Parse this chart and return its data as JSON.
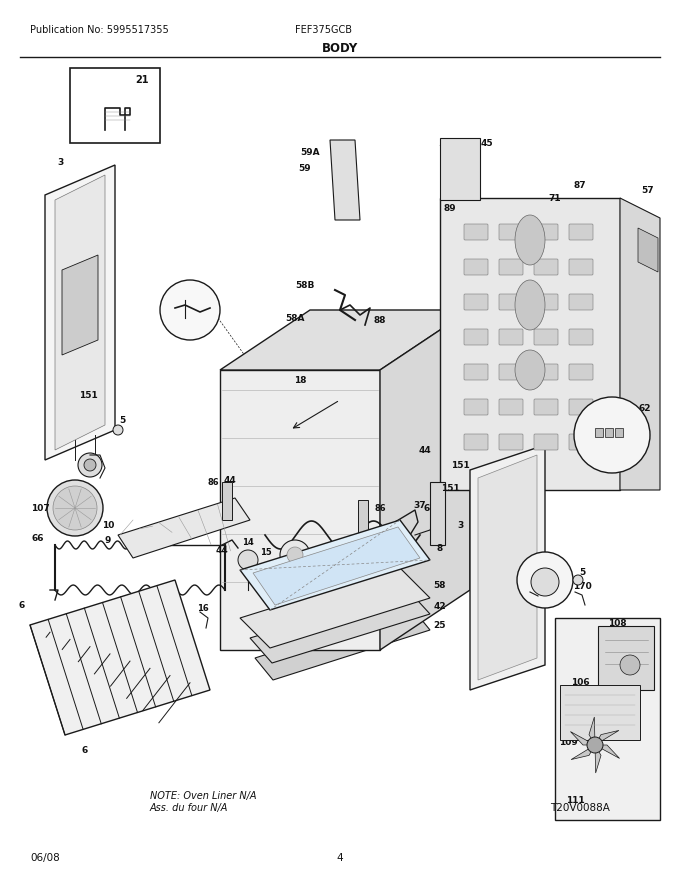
{
  "pub_no": "Publication No: 5995517355",
  "model": "FEF375GCB",
  "section": "BODY",
  "date": "06/08",
  "page": "4",
  "fig_id": "T20V0088A",
  "note_line1": "NOTE: Oven Liner N/A",
  "note_line2": "Ass. du four N/A",
  "bg_color": "#ffffff",
  "text_color": "#000000"
}
